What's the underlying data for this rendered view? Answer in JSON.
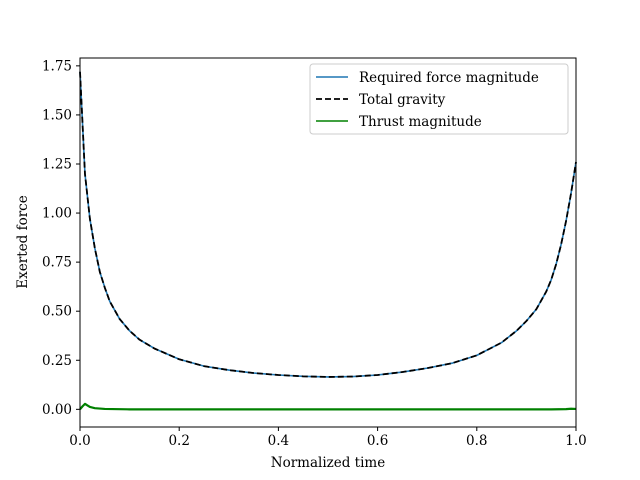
{
  "chart_data": {
    "type": "line",
    "title": "",
    "xlabel": "Normalized time",
    "ylabel": "Exerted force",
    "xlim": [
      0.0,
      1.0
    ],
    "ylim": [
      -0.09,
      1.79
    ],
    "xticks": [
      0.0,
      0.2,
      0.4,
      0.6,
      0.8,
      1.0
    ],
    "xtick_labels": [
      "0.0",
      "0.2",
      "0.4",
      "0.6",
      "0.8",
      "1.0"
    ],
    "yticks": [
      0.0,
      0.25,
      0.5,
      0.75,
      1.0,
      1.25,
      1.5,
      1.75
    ],
    "ytick_labels": [
      "0.00",
      "0.25",
      "0.50",
      "0.75",
      "1.00",
      "1.25",
      "1.50",
      "1.75"
    ],
    "grid": false,
    "legend_position": "upper right",
    "series": [
      {
        "name": "Required force magnitude",
        "color": "#1f77b4",
        "style": "solid",
        "x": [
          0.0,
          0.01,
          0.02,
          0.03,
          0.04,
          0.05,
          0.06,
          0.08,
          0.1,
          0.12,
          0.15,
          0.2,
          0.25,
          0.3,
          0.35,
          0.4,
          0.45,
          0.5,
          0.55,
          0.6,
          0.65,
          0.7,
          0.75,
          0.8,
          0.85,
          0.88,
          0.9,
          0.92,
          0.94,
          0.95,
          0.96,
          0.97,
          0.98,
          0.99,
          1.0
        ],
        "y": [
          1.72,
          1.2,
          0.97,
          0.82,
          0.7,
          0.62,
          0.55,
          0.46,
          0.4,
          0.355,
          0.31,
          0.255,
          0.22,
          0.2,
          0.185,
          0.175,
          0.168,
          0.165,
          0.167,
          0.175,
          0.19,
          0.21,
          0.235,
          0.275,
          0.34,
          0.4,
          0.45,
          0.51,
          0.6,
          0.66,
          0.74,
          0.84,
          0.96,
          1.1,
          1.26
        ]
      },
      {
        "name": "Total gravity",
        "color": "#000000",
        "style": "dashed",
        "x": [
          0.0,
          0.01,
          0.02,
          0.03,
          0.04,
          0.05,
          0.06,
          0.08,
          0.1,
          0.12,
          0.15,
          0.2,
          0.25,
          0.3,
          0.35,
          0.4,
          0.45,
          0.5,
          0.55,
          0.6,
          0.65,
          0.7,
          0.75,
          0.8,
          0.85,
          0.88,
          0.9,
          0.92,
          0.94,
          0.95,
          0.96,
          0.97,
          0.98,
          0.99,
          1.0
        ],
        "y": [
          1.72,
          1.2,
          0.97,
          0.82,
          0.7,
          0.62,
          0.55,
          0.46,
          0.4,
          0.355,
          0.31,
          0.255,
          0.22,
          0.2,
          0.185,
          0.175,
          0.168,
          0.165,
          0.167,
          0.175,
          0.19,
          0.21,
          0.235,
          0.275,
          0.34,
          0.4,
          0.45,
          0.51,
          0.6,
          0.66,
          0.74,
          0.84,
          0.96,
          1.1,
          1.26
        ]
      },
      {
        "name": "Thrust magnitude",
        "color": "#008000",
        "style": "solid",
        "x": [
          0.0,
          0.005,
          0.01,
          0.015,
          0.02,
          0.03,
          0.04,
          0.05,
          0.1,
          0.2,
          0.4,
          0.6,
          0.8,
          0.95,
          0.98,
          0.99,
          1.0
        ],
        "y": [
          0.0,
          0.015,
          0.028,
          0.02,
          0.012,
          0.006,
          0.004,
          0.002,
          0.0,
          0.0,
          0.0,
          0.0,
          0.0,
          0.0,
          0.001,
          0.003,
          0.002
        ]
      }
    ]
  }
}
